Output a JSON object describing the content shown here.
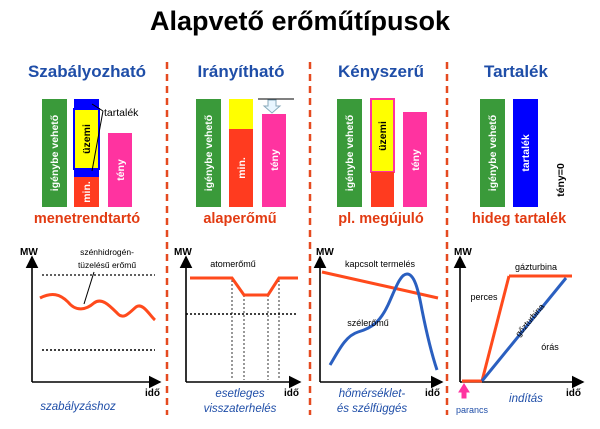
{
  "title": "Alapvető erőműtípusok",
  "colors": {
    "heading_blue": "#1f4ea8",
    "caption_red": "#e23b12",
    "green": "#3a9a3a",
    "yellow": "#ffff00",
    "red": "#ff3b1f",
    "magenta": "#ff33a0",
    "blue": "#0000ff",
    "curve_red": "#ff4a1c",
    "curve_blue": "#2a5fc0",
    "dash_red": "#e54a20"
  },
  "columns": [
    {
      "heading": "Szabályozható",
      "caption": "menetrendtartó",
      "bar_labels": [
        "igénybe vehető",
        "üzemi",
        "min.",
        "tény"
      ],
      "tartalek_label": "tartalék",
      "chart": {
        "mw": "MW",
        "ido": "idő",
        "curve_label_line1": "szénhidrogén-",
        "curve_label_line2": "tüzelésű erőmű",
        "bottom_text": "szabályzáshoz"
      }
    },
    {
      "heading": "Irányítható",
      "caption": "alaperőmű",
      "bar_labels": [
        "igénybe vehető",
        "min.",
        "tény"
      ],
      "chart": {
        "mw": "MW",
        "ido": "idő",
        "curve_label": "atomerőmű",
        "bottom_line1": "esetleges",
        "bottom_line2": "visszaterhelés"
      }
    },
    {
      "heading": "Kényszerű",
      "caption": "pl. megújuló",
      "bar_labels": [
        "igénybe vehető",
        "üzemi",
        "tény"
      ],
      "chart": {
        "mw": "MW",
        "ido": "idő",
        "curve_label_red": "kapcsolt termelés",
        "curve_label_blue": "szélerőmű",
        "bottom_line1": "hőmérséklet-",
        "bottom_line2": "és szélfüggés"
      }
    },
    {
      "heading": "Tartalék",
      "caption": "hideg tartalék",
      "bar_labels": [
        "igénybe vehető",
        "tartalék",
        "tény=0"
      ],
      "chart": {
        "mw": "MW",
        "ido": "idő",
        "label_gazturbina_top": "gázturbina",
        "label_perces": "perces",
        "label_gazturbina_diag": "gőzturbina",
        "label_oras": "órás",
        "label_parancs": "parancs",
        "bottom_text": "indítás"
      }
    }
  ]
}
